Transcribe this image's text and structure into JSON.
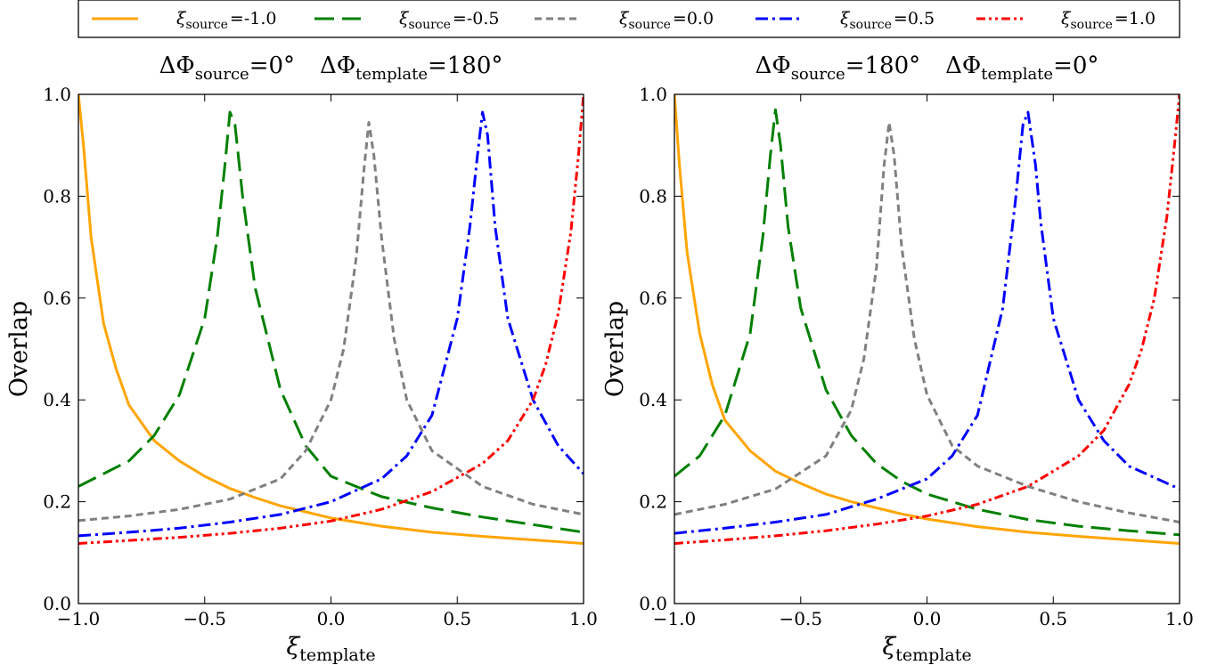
{
  "legend": {
    "location": "top, above plots",
    "entries": [
      {
        "symbol": "ξ",
        "sub": "source",
        "value": "=-1.0",
        "color": "#FFA500",
        "dash": "solid"
      },
      {
        "symbol": "ξ",
        "sub": "source",
        "value": "=-0.5",
        "color": "#008000",
        "dash": "long-dash"
      },
      {
        "symbol": "ξ",
        "sub": "source",
        "value": "=0.0",
        "color": "#808080",
        "dash": "short-dash"
      },
      {
        "symbol": "ξ",
        "sub": "source",
        "value": "=0.5",
        "color": "#0000FF",
        "dash": "dash-dot"
      },
      {
        "symbol": "ξ",
        "sub": "source",
        "value": "=1.0",
        "color": "#FF0000",
        "dash": "dash-dot-dot"
      }
    ]
  },
  "chart_data": [
    {
      "type": "line",
      "title": {
        "part1_symbol": "ΔΦ",
        "part1_sub": "source",
        "part1_value": "=0°",
        "part2_symbol": "ΔΦ",
        "part2_sub": "template",
        "part2_value": "=180°"
      },
      "xlabel": {
        "symbol": "ξ",
        "sub": "template"
      },
      "ylabel": "Overlap",
      "xlim": [
        -1.0,
        1.0
      ],
      "ylim": [
        0.0,
        1.0
      ],
      "xticks": [
        {
          "v": -1.0,
          "label": "−1.0"
        },
        {
          "v": -0.5,
          "label": "−0.5"
        },
        {
          "v": 0.0,
          "label": "0.0"
        },
        {
          "v": 0.5,
          "label": "0.5"
        },
        {
          "v": 1.0,
          "label": "1.0"
        }
      ],
      "yticks": [
        {
          "v": 0.0,
          "label": "0.0"
        },
        {
          "v": 0.2,
          "label": "0.2"
        },
        {
          "v": 0.4,
          "label": "0.4"
        },
        {
          "v": 0.6,
          "label": "0.6"
        },
        {
          "v": 0.8,
          "label": "0.8"
        },
        {
          "v": 1.0,
          "label": "1.0"
        }
      ],
      "grid": false,
      "series": [
        {
          "legend_index": 0,
          "x": [
            -1.0,
            -0.98,
            -0.95,
            -0.9,
            -0.85,
            -0.8,
            -0.7,
            -0.6,
            -0.5,
            -0.4,
            -0.3,
            -0.2,
            -0.1,
            0.0,
            0.2,
            0.4,
            0.6,
            0.8,
            1.0
          ],
          "y": [
            1.0,
            0.9,
            0.72,
            0.55,
            0.46,
            0.39,
            0.32,
            0.28,
            0.25,
            0.226,
            0.208,
            0.192,
            0.18,
            0.168,
            0.152,
            0.14,
            0.132,
            0.125,
            0.118
          ]
        },
        {
          "legend_index": 1,
          "x": [
            -1.0,
            -0.9,
            -0.8,
            -0.7,
            -0.6,
            -0.5,
            -0.45,
            -0.42,
            -0.4,
            -0.38,
            -0.35,
            -0.3,
            -0.2,
            -0.1,
            0.0,
            0.2,
            0.4,
            0.6,
            0.8,
            1.0
          ],
          "y": [
            0.23,
            0.255,
            0.28,
            0.33,
            0.41,
            0.56,
            0.72,
            0.86,
            0.965,
            0.94,
            0.8,
            0.62,
            0.42,
            0.31,
            0.25,
            0.21,
            0.188,
            0.17,
            0.155,
            0.14
          ]
        },
        {
          "legend_index": 2,
          "x": [
            -1.0,
            -0.8,
            -0.6,
            -0.4,
            -0.2,
            -0.1,
            0.0,
            0.05,
            0.1,
            0.13,
            0.15,
            0.17,
            0.2,
            0.25,
            0.3,
            0.4,
            0.6,
            0.8,
            1.0
          ],
          "y": [
            0.163,
            0.172,
            0.185,
            0.205,
            0.245,
            0.3,
            0.4,
            0.5,
            0.68,
            0.85,
            0.945,
            0.88,
            0.72,
            0.52,
            0.4,
            0.3,
            0.23,
            0.195,
            0.175
          ]
        },
        {
          "legend_index": 3,
          "x": [
            -1.0,
            -0.8,
            -0.6,
            -0.4,
            -0.2,
            0.0,
            0.2,
            0.3,
            0.4,
            0.5,
            0.55,
            0.58,
            0.6,
            0.62,
            0.65,
            0.7,
            0.8,
            0.9,
            1.0
          ],
          "y": [
            0.133,
            0.14,
            0.148,
            0.16,
            0.175,
            0.2,
            0.245,
            0.29,
            0.37,
            0.56,
            0.74,
            0.88,
            0.965,
            0.92,
            0.74,
            0.56,
            0.4,
            0.31,
            0.255
          ]
        },
        {
          "legend_index": 4,
          "x": [
            -1.0,
            -0.8,
            -0.6,
            -0.4,
            -0.2,
            0.0,
            0.2,
            0.4,
            0.6,
            0.7,
            0.8,
            0.85,
            0.9,
            0.95,
            0.98,
            1.0
          ],
          "y": [
            0.118,
            0.124,
            0.13,
            0.138,
            0.148,
            0.162,
            0.185,
            0.22,
            0.275,
            0.32,
            0.4,
            0.47,
            0.57,
            0.73,
            0.88,
            1.0
          ]
        }
      ]
    },
    {
      "type": "line",
      "title": {
        "part1_symbol": "ΔΦ",
        "part1_sub": "source",
        "part1_value": "=180°",
        "part2_symbol": "ΔΦ",
        "part2_sub": "template",
        "part2_value": "=0°"
      },
      "xlabel": {
        "symbol": "ξ",
        "sub": "template"
      },
      "ylabel": "Overlap",
      "xlim": [
        -1.0,
        1.0
      ],
      "ylim": [
        0.0,
        1.0
      ],
      "xticks": [
        {
          "v": -1.0,
          "label": "−1.0"
        },
        {
          "v": -0.5,
          "label": "−0.5"
        },
        {
          "v": 0.0,
          "label": "0.0"
        },
        {
          "v": 0.5,
          "label": "0.5"
        },
        {
          "v": 1.0,
          "label": "1.0"
        }
      ],
      "yticks": [
        {
          "v": 0.0,
          "label": "0.0"
        },
        {
          "v": 0.2,
          "label": "0.2"
        },
        {
          "v": 0.4,
          "label": "0.4"
        },
        {
          "v": 0.6,
          "label": "0.6"
        },
        {
          "v": 0.8,
          "label": "0.8"
        },
        {
          "v": 1.0,
          "label": "1.0"
        }
      ],
      "grid": false,
      "series": [
        {
          "legend_index": 0,
          "x": [
            -1.0,
            -0.98,
            -0.95,
            -0.9,
            -0.85,
            -0.8,
            -0.7,
            -0.6,
            -0.5,
            -0.4,
            -0.3,
            -0.2,
            -0.1,
            0.0,
            0.2,
            0.4,
            0.6,
            0.8,
            1.0
          ],
          "y": [
            1.0,
            0.86,
            0.69,
            0.53,
            0.43,
            0.36,
            0.3,
            0.26,
            0.236,
            0.215,
            0.2,
            0.188,
            0.176,
            0.166,
            0.151,
            0.14,
            0.132,
            0.125,
            0.118
          ]
        },
        {
          "legend_index": 1,
          "x": [
            -1.0,
            -0.9,
            -0.8,
            -0.7,
            -0.65,
            -0.62,
            -0.6,
            -0.58,
            -0.55,
            -0.5,
            -0.4,
            -0.3,
            -0.2,
            -0.1,
            0.0,
            0.2,
            0.4,
            0.6,
            0.8,
            1.0
          ],
          "y": [
            0.25,
            0.29,
            0.37,
            0.53,
            0.72,
            0.88,
            0.97,
            0.9,
            0.74,
            0.58,
            0.42,
            0.33,
            0.275,
            0.24,
            0.215,
            0.185,
            0.165,
            0.152,
            0.143,
            0.135
          ]
        },
        {
          "legend_index": 2,
          "x": [
            -1.0,
            -0.8,
            -0.6,
            -0.4,
            -0.3,
            -0.25,
            -0.2,
            -0.17,
            -0.15,
            -0.13,
            -0.1,
            -0.05,
            0.0,
            0.1,
            0.2,
            0.4,
            0.6,
            0.8,
            1.0
          ],
          "y": [
            0.175,
            0.195,
            0.225,
            0.29,
            0.38,
            0.48,
            0.66,
            0.86,
            0.945,
            0.88,
            0.7,
            0.52,
            0.41,
            0.31,
            0.27,
            0.23,
            0.2,
            0.178,
            0.16
          ]
        },
        {
          "legend_index": 3,
          "x": [
            -1.0,
            -0.8,
            -0.6,
            -0.4,
            -0.2,
            0.0,
            0.1,
            0.2,
            0.3,
            0.35,
            0.38,
            0.4,
            0.43,
            0.45,
            0.5,
            0.6,
            0.7,
            0.8,
            1.0
          ],
          "y": [
            0.138,
            0.148,
            0.16,
            0.175,
            0.205,
            0.245,
            0.29,
            0.37,
            0.58,
            0.79,
            0.94,
            0.965,
            0.86,
            0.75,
            0.56,
            0.4,
            0.32,
            0.27,
            0.225
          ]
        },
        {
          "legend_index": 4,
          "x": [
            -1.0,
            -0.8,
            -0.6,
            -0.4,
            -0.2,
            0.0,
            0.2,
            0.4,
            0.6,
            0.7,
            0.8,
            0.85,
            0.9,
            0.95,
            0.98,
            1.0
          ],
          "y": [
            0.118,
            0.125,
            0.133,
            0.143,
            0.156,
            0.172,
            0.195,
            0.23,
            0.29,
            0.34,
            0.43,
            0.5,
            0.6,
            0.76,
            0.9,
            1.0
          ]
        }
      ]
    }
  ]
}
